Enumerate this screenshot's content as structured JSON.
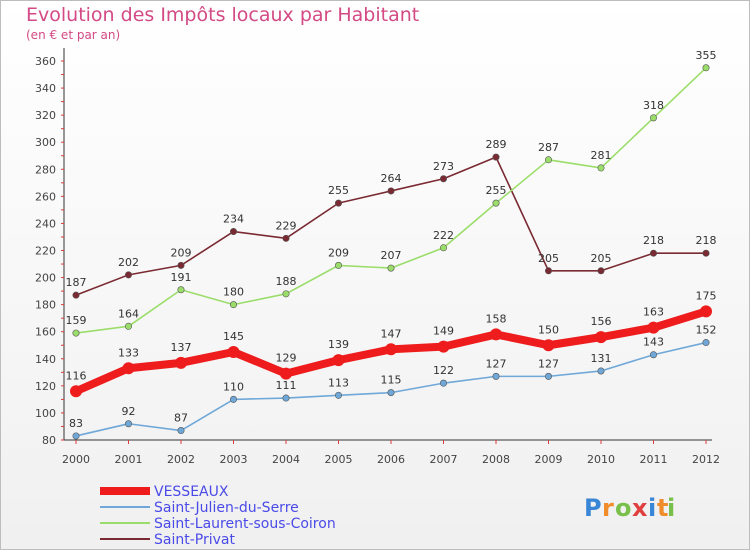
{
  "title": "Evolution des Impôts locaux par Habitant",
  "subtitle": "(en € et par an)",
  "logo": {
    "letters": [
      "P",
      "r",
      "o",
      "x",
      "i",
      "t",
      "i"
    ],
    "colors": [
      "#3a86d6",
      "#f08c2a",
      "#78c04a",
      "#e04040",
      "#3a86d6",
      "#f08c2a",
      "#78c04a"
    ]
  },
  "chart_data": {
    "type": "line",
    "x": [
      "2000",
      "2001",
      "2002",
      "2003",
      "2004",
      "2005",
      "2006",
      "2007",
      "2008",
      "2009",
      "2010",
      "2011",
      "2012"
    ],
    "ylim": [
      80,
      360
    ],
    "yticks": [
      80,
      100,
      120,
      140,
      160,
      180,
      200,
      220,
      240,
      260,
      280,
      300,
      320,
      340,
      360
    ],
    "grid": false,
    "legend_position": "bottom-left",
    "series": [
      {
        "name": "VESSEAUX",
        "color": "#ee1c1c",
        "values": [
          116,
          133,
          137,
          145,
          129,
          139,
          147,
          149,
          158,
          150,
          156,
          163,
          175
        ]
      },
      {
        "name": "Saint-Julien-du-Serre",
        "color": "#6fa8d8",
        "values": [
          83,
          92,
          87,
          110,
          111,
          113,
          115,
          122,
          127,
          127,
          131,
          143,
          152
        ]
      },
      {
        "name": "Saint-Laurent-sous-Coiron",
        "color": "#9bdd6a",
        "values": [
          159,
          164,
          191,
          180,
          188,
          209,
          207,
          222,
          255,
          287,
          281,
          318,
          355
        ]
      },
      {
        "name": "Saint-Privat",
        "color": "#7a2a32",
        "values": [
          187,
          202,
          209,
          234,
          229,
          255,
          264,
          273,
          289,
          205,
          205,
          218,
          218
        ]
      }
    ]
  }
}
